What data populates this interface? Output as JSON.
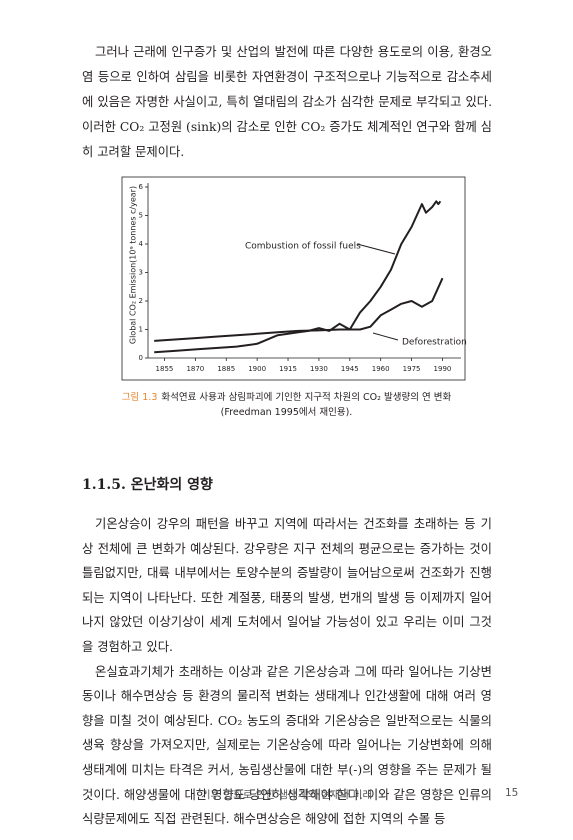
{
  "paragraphs": [
    "그러나 근래에 인구증가 및 산업의 발전에 따른 다양한 용도로의 이용, 환경오염 등으로 인하여 삼림을 비롯한 자연환경이 구조적으로나 기능적으로 감소추세에 있음은 자명한 사실이고, 특히 열대림의 감소가 심각한 문제로 부각되고 있다. 이러한 CO₂ 고정원 (sink)의 감소로 인한 CO₂ 증가도 체계적인 연구와 함께 심히 고려할 문제이다."
  ],
  "chart_data": {
    "type": "line",
    "y_label": "Global CO₂ Emission(10⁹ tonnes c/year)",
    "xlim": [
      1847,
      1999
    ],
    "ylim": [
      0,
      6
    ],
    "xticks": [
      1855,
      1870,
      1885,
      1900,
      1915,
      1930,
      1945,
      1960,
      1975,
      1990
    ],
    "yticks": [
      0,
      1,
      2,
      3,
      4,
      5,
      6
    ],
    "series": [
      {
        "name": "Combustion of fossil fuels",
        "color": "#231f20",
        "x": [
          1850,
          1860,
          1870,
          1880,
          1890,
          1900,
          1910,
          1915,
          1920,
          1925,
          1930,
          1935,
          1940,
          1945,
          1950,
          1955,
          1960,
          1965,
          1970,
          1975,
          1980,
          1982,
          1985,
          1987,
          1988,
          1989
        ],
        "values": [
          0.2,
          0.25,
          0.3,
          0.35,
          0.4,
          0.5,
          0.8,
          0.85,
          0.9,
          0.95,
          1.05,
          0.95,
          1.2,
          1.0,
          1.6,
          2.0,
          2.5,
          3.1,
          4.0,
          4.6,
          5.4,
          5.1,
          5.3,
          5.5,
          5.4,
          5.5
        ]
      },
      {
        "name": "Deforestration",
        "color": "#231f20",
        "x": [
          1850,
          1860,
          1870,
          1880,
          1890,
          1900,
          1910,
          1920,
          1930,
          1940,
          1950,
          1955,
          1960,
          1965,
          1970,
          1975,
          1980,
          1985,
          1990
        ],
        "values": [
          0.6,
          0.65,
          0.7,
          0.75,
          0.8,
          0.85,
          0.9,
          0.95,
          0.97,
          1.0,
          1.0,
          1.1,
          1.5,
          1.7,
          1.9,
          2.0,
          1.8,
          2.0,
          2.8
        ]
      }
    ]
  },
  "figure": {
    "label": "그림 1.3",
    "caption": "화석연료 사용과 삼림파괴에 기인한 지구적 차원의 CO₂ 발생량의 연 변화",
    "source": "(Freedman 1995에서 재인용)."
  },
  "section": {
    "heading": "1.1.5. 온난화의 영향",
    "paragraphs": [
      "기온상승이 강우의 패턴을 바꾸고 지역에 따라서는 건조화를 초래하는 등 기상 전체에 큰 변화가 예상된다. 강우량은 지구 전체의 평균으로는 증가하는 것이 틀림없지만, 대륙 내부에서는 토양수분의 증발량이 늘어남으로써 건조화가 진행되는 지역이 나타난다. 또한 계절풍, 태풍의 발생, 번개의 발생 등 이제까지 일어나지 않았던 이상기상이 세계 도처에서 일어날 가능성이 있고 우리는 이미 그것을 경험하고 있다.",
      "온실효과기체가 초래하는 이상과 같은 기온상승과 그에 따라 일어나는 기상변동이나 해수면상승 등 환경의 물리적 변화는 생태계나 인간생활에 대해 여러 영향을 미칠 것이 예상된다. CO₂ 농도의 증대와 기온상승은 일반적으로는 식물의 생육 향상을 가져오지만, 실제로는 기온상승에 따라 일어나는 기상변화에 의해 생태계에 미치는 타격은 커서, 농림생산물에 대한 부(-)의 영향을 주는 문제가 될 것이다. 해양생물에 대한 영향도 당연히 생각해야 한다. 이와 같은 영향은 인류의 식량문제에도 직접 관련된다. 해수면상승은 해양에 접한 지역의 수몰 등"
    ]
  },
  "footer": {
    "title": "기후 변화로 인한 생태계의 현재와 미래",
    "page": "15"
  }
}
